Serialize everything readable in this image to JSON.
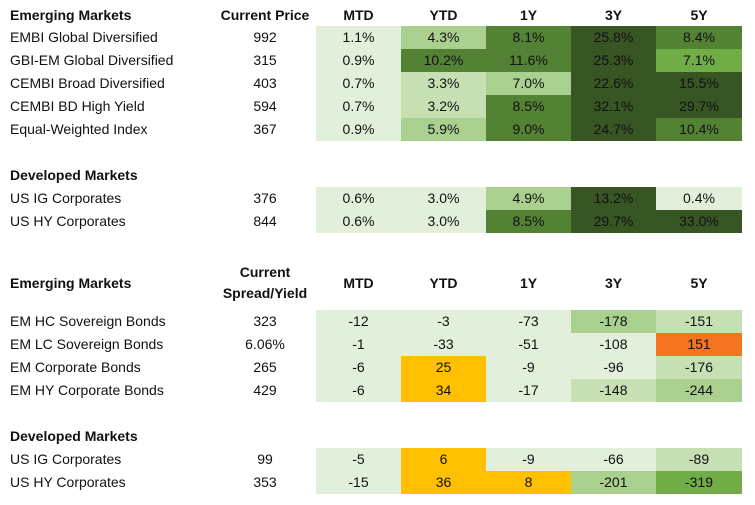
{
  "colors": {
    "lightest": "#e2efda",
    "light": "#c6e0b4",
    "mid": "#a9d08e",
    "medium": "#70ad47",
    "dark": "#548235",
    "darkest": "#375623",
    "amber": "#ffc000",
    "orange": "#f4741f"
  },
  "sections": [
    {
      "header": {
        "title": "Emerging Markets",
        "col1": "Current Price",
        "cols": [
          "MTD",
          "YTD",
          "1Y",
          "3Y",
          "5Y"
        ]
      },
      "rows": [
        {
          "name": "EMBI Global Diversified",
          "value": "992",
          "cells": [
            {
              "v": "1.1%",
              "c": "lightest"
            },
            {
              "v": "4.3%",
              "c": "mid"
            },
            {
              "v": "8.1%",
              "c": "dark"
            },
            {
              "v": "25.8%",
              "c": "darkest"
            },
            {
              "v": "8.4%",
              "c": "dark"
            }
          ]
        },
        {
          "name": "GBI-EM Global Diversified",
          "value": "315",
          "cells": [
            {
              "v": "0.9%",
              "c": "lightest"
            },
            {
              "v": "10.2%",
              "c": "dark"
            },
            {
              "v": "11.6%",
              "c": "dark"
            },
            {
              "v": "25.3%",
              "c": "darkest"
            },
            {
              "v": "7.1%",
              "c": "medium"
            }
          ]
        },
        {
          "name": "CEMBI Broad Diversified",
          "value": "403",
          "cells": [
            {
              "v": "0.7%",
              "c": "lightest"
            },
            {
              "v": "3.3%",
              "c": "light"
            },
            {
              "v": "7.0%",
              "c": "mid"
            },
            {
              "v": "22.6%",
              "c": "darkest"
            },
            {
              "v": "15.5%",
              "c": "darkest"
            }
          ]
        },
        {
          "name": "CEMBI BD High Yield",
          "value": "594",
          "cells": [
            {
              "v": "0.7%",
              "c": "lightest"
            },
            {
              "v": "3.2%",
              "c": "light"
            },
            {
              "v": "8.5%",
              "c": "dark"
            },
            {
              "v": "32.1%",
              "c": "darkest"
            },
            {
              "v": "29.7%",
              "c": "darkest"
            }
          ]
        },
        {
          "name": "Equal-Weighted Index",
          "value": "367",
          "cells": [
            {
              "v": "0.9%",
              "c": "lightest"
            },
            {
              "v": "5.9%",
              "c": "mid"
            },
            {
              "v": "9.0%",
              "c": "dark"
            },
            {
              "v": "24.7%",
              "c": "darkest"
            },
            {
              "v": "10.4%",
              "c": "dark"
            }
          ]
        }
      ]
    },
    {
      "header": {
        "title": "Developed Markets"
      },
      "rows": [
        {
          "name": "US IG Corporates",
          "value": "376",
          "cells": [
            {
              "v": "0.6%",
              "c": "lightest"
            },
            {
              "v": "3.0%",
              "c": "lightest"
            },
            {
              "v": "4.9%",
              "c": "mid"
            },
            {
              "v": "13.2%",
              "c": "darkest"
            },
            {
              "v": "0.4%",
              "c": "lightest"
            }
          ]
        },
        {
          "name": "US HY Corporates",
          "value": "844",
          "cells": [
            {
              "v": "0.6%",
              "c": "lightest"
            },
            {
              "v": "3.0%",
              "c": "lightest"
            },
            {
              "v": "8.5%",
              "c": "dark"
            },
            {
              "v": "29.7%",
              "c": "darkest"
            },
            {
              "v": "33.0%",
              "c": "darkest"
            }
          ]
        }
      ]
    },
    {
      "header": {
        "title": "Emerging Markets",
        "col1_line1": "Current",
        "col1_line2": "Spread/Yield",
        "cols": [
          "MTD",
          "YTD",
          "1Y",
          "3Y",
          "5Y"
        ]
      },
      "rows": [
        {
          "name": "EM HC Sovereign Bonds",
          "value": "323",
          "cells": [
            {
              "v": "-12",
              "c": "lightest"
            },
            {
              "v": "-3",
              "c": "lightest"
            },
            {
              "v": "-73",
              "c": "lightest"
            },
            {
              "v": "-178",
              "c": "mid"
            },
            {
              "v": "-151",
              "c": "light"
            }
          ]
        },
        {
          "name": "EM LC Sovereign Bonds",
          "value": "6.06%",
          "cells": [
            {
              "v": "-1",
              "c": "lightest"
            },
            {
              "v": "-33",
              "c": "lightest"
            },
            {
              "v": "-51",
              "c": "lightest"
            },
            {
              "v": "-108",
              "c": "lightest"
            },
            {
              "v": "151",
              "c": "orange"
            }
          ]
        },
        {
          "name": "EM Corporate Bonds",
          "value": "265",
          "cells": [
            {
              "v": "-6",
              "c": "lightest"
            },
            {
              "v": "25",
              "c": "amber"
            },
            {
              "v": "-9",
              "c": "lightest"
            },
            {
              "v": "-96",
              "c": "lightest"
            },
            {
              "v": "-176",
              "c": "light"
            }
          ]
        },
        {
          "name": "EM HY Corporate Bonds",
          "value": "429",
          "cells": [
            {
              "v": "-6",
              "c": "lightest"
            },
            {
              "v": "34",
              "c": "amber"
            },
            {
              "v": "-17",
              "c": "lightest"
            },
            {
              "v": "-148",
              "c": "light"
            },
            {
              "v": "-244",
              "c": "mid"
            }
          ]
        }
      ]
    },
    {
      "header": {
        "title": "Developed Markets"
      },
      "rows": [
        {
          "name": "US IG Corporates",
          "value": "99",
          "cells": [
            {
              "v": "-5",
              "c": "lightest"
            },
            {
              "v": "6",
              "c": "amber"
            },
            {
              "v": "-9",
              "c": "lightest"
            },
            {
              "v": "-66",
              "c": "lightest"
            },
            {
              "v": "-89",
              "c": "light"
            }
          ]
        },
        {
          "name": "US HY Corporates",
          "value": "353",
          "cells": [
            {
              "v": "-15",
              "c": "lightest"
            },
            {
              "v": "36",
              "c": "amber"
            },
            {
              "v": "8",
              "c": "amber"
            },
            {
              "v": "-201",
              "c": "mid"
            },
            {
              "v": "-319",
              "c": "medium"
            }
          ]
        }
      ]
    }
  ]
}
